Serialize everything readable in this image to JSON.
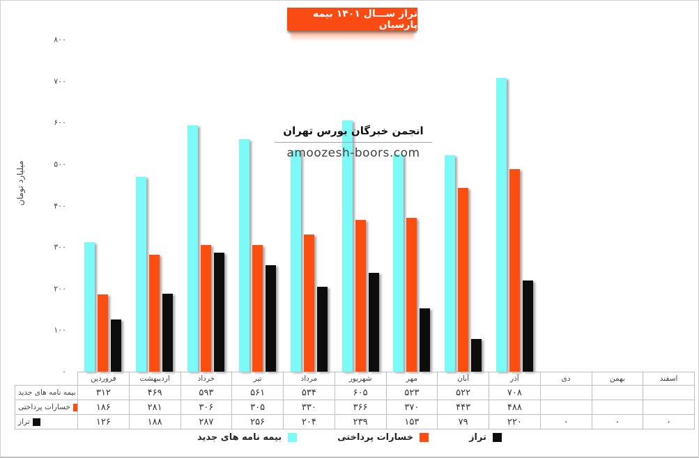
{
  "header": {
    "title": "تراز ســـال ۱۴۰۱ بیمه پارسیان"
  },
  "watermark": {
    "line1": "انجمن خبرگان بورس تهران",
    "line2": "amoozesh-boors.com"
  },
  "y_axis": {
    "title": "میلیارد تومان",
    "min": 0,
    "max": 800,
    "step": 100
  },
  "colors": {
    "title_box": "#FB4A14",
    "bar_cyan": "#7CFAF8",
    "bar_orange": "#FC4E11",
    "bar_black": "#0D0D0D",
    "table_border": "#BFBFBF"
  },
  "chart_data": {
    "type": "bar",
    "title": "تراز ســـال ۱۴۰۱ بیمه پارسیان",
    "ylabel": "میلیارد تومان",
    "ylim": [
      0,
      800
    ],
    "grid": false,
    "legend_position": "bottom",
    "categories": [
      "فروردین",
      "اردیبهشت",
      "خرداد",
      "تیر",
      "مرداد",
      "شهریور",
      "مهر",
      "آبان",
      "آذر",
      "دی",
      "بهمن",
      "اسفند"
    ],
    "series": [
      {
        "name": "بیمه نامه های جدید",
        "color": "#7CFAF8",
        "values": [
          312,
          469,
          593,
          561,
          534,
          605,
          523,
          522,
          708,
          null,
          null,
          null
        ]
      },
      {
        "name": "خسارات پرداختی",
        "color": "#FC4E11",
        "values": [
          186,
          281,
          306,
          305,
          330,
          366,
          370,
          443,
          488,
          null,
          null,
          null
        ]
      },
      {
        "name": "تراز",
        "color": "#0D0D0D",
        "values": [
          126,
          188,
          287,
          256,
          204,
          239,
          153,
          79,
          220,
          0,
          0,
          0
        ]
      }
    ]
  }
}
